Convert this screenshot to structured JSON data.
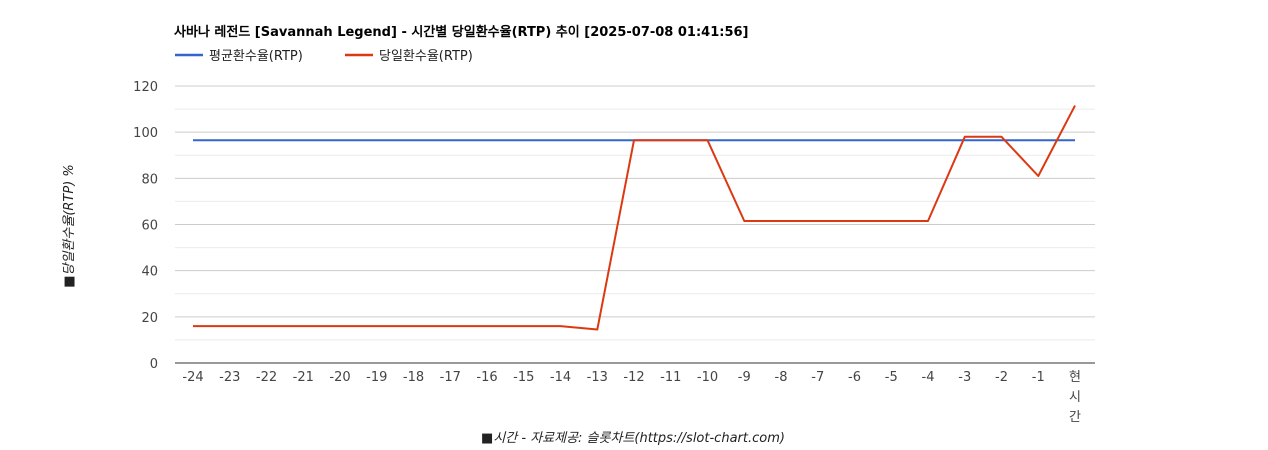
{
  "chart_data": {
    "type": "line",
    "title": "사바나 레전드 [Savannah Legend] - 시간별 당일환수율(RTP) 추이 [2025-07-08 01:41:56]",
    "xlabel": "■시간 - 자료제공: 슬롯차트(https://slot-chart.com)",
    "ylabel": "■당일환수율(RTP) %",
    "ylim": [
      0,
      120
    ],
    "yticks": [
      "0",
      "20",
      "40",
      "60",
      "80",
      "100",
      "120"
    ],
    "grid": true,
    "legend_position": "top-left",
    "categories": [
      "-24",
      "-23",
      "-22",
      "-21",
      "-20",
      "-19",
      "-18",
      "-17",
      "-16",
      "-15",
      "-14",
      "-13",
      "-12",
      "-11",
      "-10",
      "-9",
      "-8",
      "-7",
      "-6",
      "-5",
      "-4",
      "-3",
      "-2",
      "-1",
      "현\n시\n간"
    ],
    "series": [
      {
        "name": "평균환수율(RTP)",
        "color": "#3366cc",
        "values": [
          96.5,
          96.5,
          96.5,
          96.5,
          96.5,
          96.5,
          96.5,
          96.5,
          96.5,
          96.5,
          96.5,
          96.5,
          96.5,
          96.5,
          96.5,
          96.5,
          96.5,
          96.5,
          96.5,
          96.5,
          96.5,
          96.5,
          96.5,
          96.5,
          96.5
        ]
      },
      {
        "name": "당일환수율(RTP)",
        "color": "#dc3912",
        "values": [
          16.0,
          16.0,
          16.0,
          16.0,
          16.0,
          16.0,
          16.0,
          16.0,
          16.0,
          16.0,
          16.0,
          14.5,
          96.5,
          96.5,
          96.5,
          61.5,
          61.5,
          61.5,
          61.5,
          61.5,
          61.5,
          98.0,
          98.0,
          81.0,
          111.5
        ]
      }
    ]
  }
}
